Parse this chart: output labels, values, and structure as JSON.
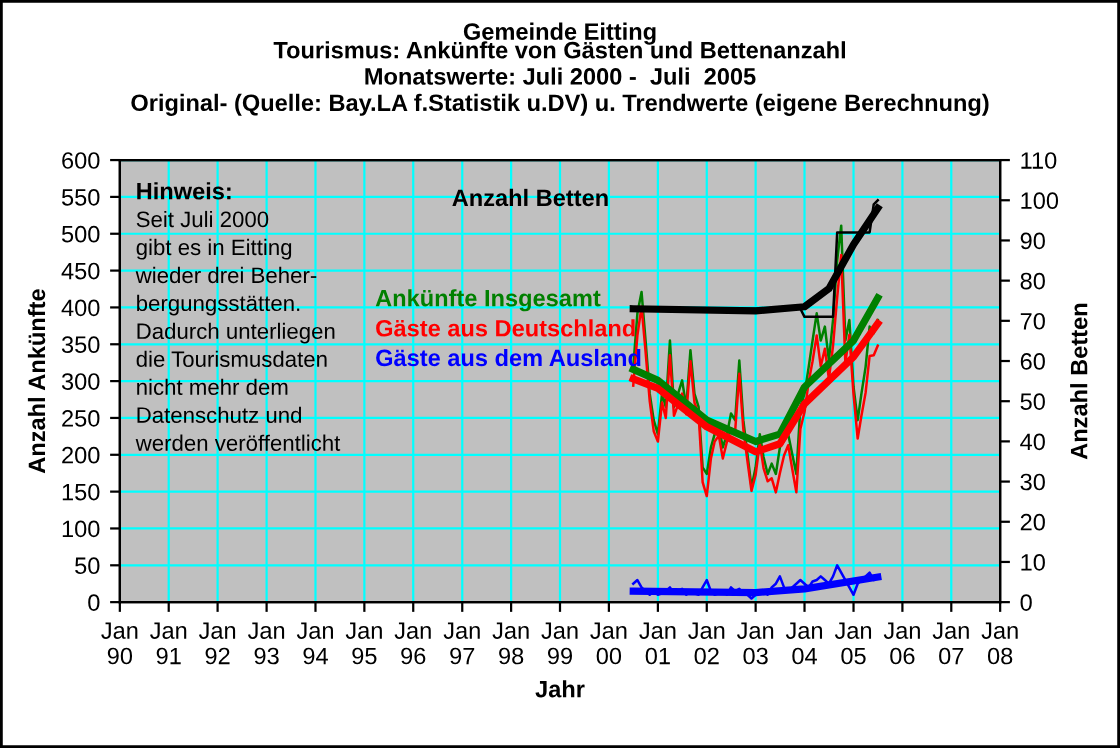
{
  "chart_data": {
    "type": "line",
    "title": "Gemeinde Eitting",
    "subtitle": "Tourismus: Ankünfte von Gästen und Bettenanzahl\nMonatswerte: Juli 2000 -  Juli  2005\nOriginal- (Quelle: Bay.LA f.Statistik u.DV) u. Trendwerte (eigene Berechnung)",
    "xlabel": "Jahr",
    "ylabel": "Anzahl Ankünfte",
    "y2label": "Anzahl Betten",
    "annotations": [
      "Hinweis:",
      "Seit Juli 2000\ngibt es in Eitting\nwieder drei Beher-\nbergungsstätten.\nDadurch unterliegen\ndie Tourismusdaten\nnicht mehr dem\nDatenschutz und\nwerden veröffentlicht"
    ],
    "x": [
      "2000-07",
      "2000-08",
      "2000-09",
      "2000-10",
      "2000-11",
      "2000-12",
      "2001-01",
      "2001-02",
      "2001-03",
      "2001-04",
      "2001-05",
      "2001-06",
      "2001-07",
      "2001-08",
      "2001-09",
      "2001-10",
      "2001-11",
      "2001-12",
      "2002-01",
      "2002-02",
      "2002-03",
      "2002-04",
      "2002-05",
      "2002-06",
      "2002-07",
      "2002-08",
      "2002-09",
      "2002-10",
      "2002-11",
      "2002-12",
      "2003-01",
      "2003-02",
      "2003-03",
      "2003-04",
      "2003-05",
      "2003-06",
      "2003-07",
      "2003-08",
      "2003-09",
      "2003-10",
      "2003-11",
      "2003-12",
      "2004-01",
      "2004-02",
      "2004-03",
      "2004-04",
      "2004-05",
      "2004-06",
      "2004-07",
      "2004-08",
      "2004-09",
      "2004-10",
      "2004-11",
      "2004-12",
      "2005-01",
      "2005-02",
      "2005-03",
      "2005-04",
      "2005-05",
      "2005-06",
      "2005-07"
    ],
    "series": [
      {
        "name": "Ankünfte Insgesamt",
        "color": "#008000",
        "values": [
          319,
          392,
          421,
          355,
          283,
          247,
          228,
          283,
          265,
          355,
          265,
          283,
          301,
          265,
          342,
          283,
          265,
          183,
          174,
          210,
          228,
          238,
          210,
          228,
          256,
          247,
          328,
          247,
          201,
          156,
          183,
          228,
          197,
          174,
          188,
          174,
          210,
          219,
          228,
          201,
          174,
          265,
          283,
          319,
          355,
          392,
          355,
          374,
          328,
          383,
          464,
          511,
          355,
          383,
          292,
          247,
          283,
          319,
          374,
          365,
          383
        ]
      },
      {
        "name": "Gäste aus Deutschland",
        "color": "#ff0000",
        "values": [
          294,
          362,
          401,
          340,
          273,
          232,
          218,
          271,
          250,
          335,
          253,
          268,
          283,
          255,
          327,
          271,
          255,
          163,
          144,
          195,
          218,
          226,
          195,
          218,
          236,
          232,
          310,
          235,
          191,
          151,
          173,
          216,
          182,
          164,
          168,
          149,
          175,
          199,
          213,
          181,
          149,
          235,
          258,
          299,
          327,
          362,
          320,
          344,
          303,
          348,
          414,
          471,
          325,
          363,
          282,
          222,
          253,
          284,
          334,
          335,
          348
        ]
      },
      {
        "name": "Gäste aus dem Ausland",
        "color": "#0000ff",
        "values": [
          25,
          30,
          20,
          15,
          10,
          15,
          10,
          12,
          15,
          20,
          12,
          15,
          18,
          10,
          15,
          12,
          10,
          20,
          30,
          15,
          10,
          12,
          15,
          10,
          20,
          15,
          18,
          12,
          10,
          5,
          10,
          12,
          15,
          10,
          20,
          25,
          35,
          20,
          15,
          20,
          25,
          30,
          25,
          20,
          28,
          30,
          35,
          30,
          25,
          35,
          50,
          40,
          30,
          20,
          10,
          25,
          30,
          35,
          40,
          30,
          35
        ]
      },
      {
        "name": "Anzahl Betten",
        "color": "#000000",
        "axis": "y2",
        "x": [
          "2000-07",
          "2003-12",
          "2004-01",
          "2004-08",
          "2004-09",
          "2005-05",
          "2005-06",
          "2005-07"
        ],
        "values": [
          73,
          73,
          71,
          71,
          92,
          92,
          99,
          100
        ]
      },
      {
        "color": "#008000",
        "x": [
          "2000-07",
          "2001-01",
          "2002-01",
          "2003-01",
          "2003-07",
          "2004-01",
          "2005-01",
          "2005-07"
        ],
        "values": [
          316,
          301,
          247,
          218,
          228,
          292,
          355,
          413
        ]
      },
      {
        "color": "#ff0000",
        "x": [
          "2000-07",
          "2001-01",
          "2002-01",
          "2003-01",
          "2003-07",
          "2004-01",
          "2005-01",
          "2005-07"
        ],
        "values": [
          303,
          290,
          238,
          204,
          215,
          269,
          333,
          378
        ]
      },
      {
        "color": "#0000ff",
        "x": [
          "2000-07",
          "2003-01",
          "2004-01",
          "2005-07"
        ],
        "values": [
          15,
          13,
          18,
          34
        ]
      },
      {
        "color": "#000000",
        "axis": "y2",
        "x": [
          "2000-07",
          "2003-01",
          "2004-01",
          "2004-07",
          "2005-01",
          "2005-07"
        ],
        "values": [
          73,
          72.5,
          73.5,
          78,
          89,
          98
        ]
      }
    ],
    "xlim": [
      "1990-01",
      "2008-01"
    ],
    "xticks": [
      {
        "value": "1990-01",
        "label": "Jan\n90"
      },
      {
        "value": "1991-01",
        "label": "Jan\n91"
      },
      {
        "value": "1992-01",
        "label": "Jan\n92"
      },
      {
        "value": "1993-01",
        "label": "Jan\n93"
      },
      {
        "value": "1994-01",
        "label": "Jan\n94"
      },
      {
        "value": "1995-01",
        "label": "Jan\n95"
      },
      {
        "value": "1996-01",
        "label": "Jan\n96"
      },
      {
        "value": "1997-01",
        "label": "Jan\n97"
      },
      {
        "value": "1998-01",
        "label": "Jan\n98"
      },
      {
        "value": "1999-01",
        "label": "Jan\n99"
      },
      {
        "value": "2000-01",
        "label": "Jan\n00"
      },
      {
        "value": "2001-01",
        "label": "Jan\n01"
      },
      {
        "value": "2002-01",
        "label": "Jan\n02"
      },
      {
        "value": "2003-01",
        "label": "Jan\n03"
      },
      {
        "value": "2004-01",
        "label": "Jan\n04"
      },
      {
        "value": "2005-01",
        "label": "Jan\n05"
      },
      {
        "value": "2006-01",
        "label": "Jan\n06"
      },
      {
        "value": "2007-01",
        "label": "Jan\n07"
      },
      {
        "value": "2008-01",
        "label": "Jan\n08"
      }
    ],
    "ylim": [
      0,
      600
    ],
    "yticks": [
      0,
      50,
      100,
      150,
      200,
      250,
      300,
      350,
      400,
      450,
      500,
      550,
      600
    ],
    "y2lim": [
      0,
      110
    ],
    "y2ticks": [
      0,
      10,
      20,
      30,
      40,
      50,
      60,
      70,
      80,
      90,
      100,
      110
    ],
    "grid": true,
    "legend": false,
    "marker": "none",
    "line_style": "solid"
  }
}
